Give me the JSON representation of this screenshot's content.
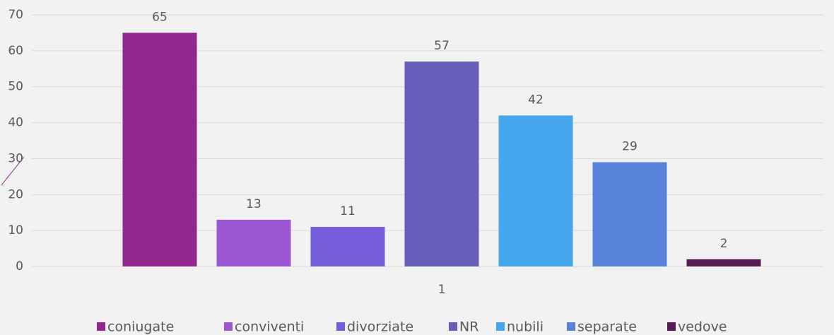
{
  "chart_data": {
    "type": "bar",
    "categories": [
      "1"
    ],
    "series": [
      {
        "name": "coniugate",
        "color": "#92278f",
        "values": [
          65
        ]
      },
      {
        "name": "conviventi",
        "color": "#9b57d3",
        "values": [
          13
        ]
      },
      {
        "name": "divorziate",
        "color": "#755dd9",
        "values": [
          11
        ]
      },
      {
        "name": "NR",
        "color": "#665eb8",
        "values": [
          57
        ]
      },
      {
        "name": "nubili",
        "color": "#45a5ed",
        "values": [
          42
        ]
      },
      {
        "name": "separate",
        "color": "#5982db",
        "values": [
          29
        ]
      },
      {
        "name": "vedove",
        "color": "#561a55",
        "values": [
          2
        ]
      }
    ],
    "ylim": [
      0,
      70
    ],
    "yticks": [
      0,
      10,
      20,
      30,
      40,
      50,
      60,
      70
    ],
    "grid": true,
    "legend": "bottom"
  }
}
